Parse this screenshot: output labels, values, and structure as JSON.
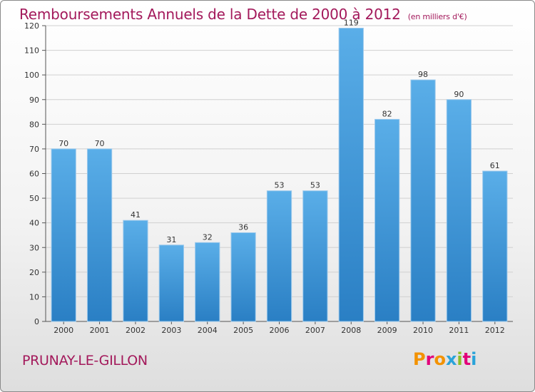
{
  "title": "Remboursements Annuels de la Dette de 2000 à 2012",
  "unit": "(en milliers d'€)",
  "town": "PRUNAY-LE-GILLON",
  "brand": {
    "text": "Proxiti",
    "letter_colors": [
      "#f39200",
      "#e2007a",
      "#f39200",
      "#2aa3d9",
      "#8cbf26",
      "#e2007a",
      "#2aa3d9"
    ]
  },
  "chart_data": {
    "type": "bar",
    "categories": [
      "2000",
      "2001",
      "2002",
      "2003",
      "2004",
      "2005",
      "2006",
      "2007",
      "2008",
      "2009",
      "2010",
      "2011",
      "2012"
    ],
    "values": [
      70,
      70,
      41,
      31,
      32,
      36,
      53,
      53,
      119,
      82,
      98,
      90,
      61
    ],
    "ylim": [
      0,
      120
    ],
    "yticks": [
      0,
      10,
      20,
      30,
      40,
      50,
      60,
      70,
      80,
      90,
      100,
      110,
      120
    ],
    "grid": true,
    "bar_color": "#3b8fd4"
  }
}
